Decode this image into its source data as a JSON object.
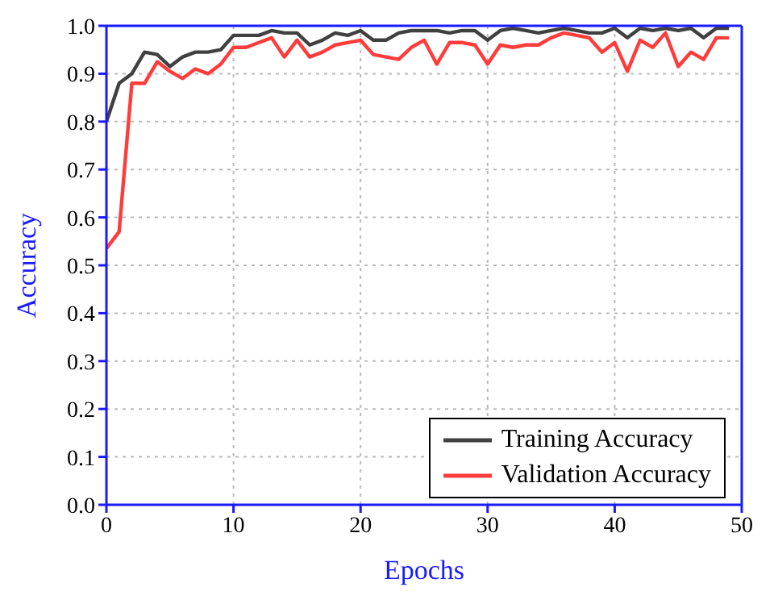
{
  "chart_data": {
    "type": "line",
    "xlabel": "Epochs",
    "ylabel": "Accuracy",
    "x": [
      0,
      1,
      2,
      3,
      4,
      5,
      6,
      7,
      8,
      9,
      10,
      11,
      12,
      13,
      14,
      15,
      16,
      17,
      18,
      19,
      20,
      21,
      22,
      23,
      24,
      25,
      26,
      27,
      28,
      29,
      30,
      31,
      32,
      33,
      34,
      35,
      36,
      37,
      38,
      39,
      40,
      41,
      42,
      43,
      44,
      45,
      46,
      47,
      48,
      49
    ],
    "series": [
      {
        "name": "Training Accuracy",
        "color": "#404040",
        "values": [
          0.8,
          0.88,
          0.9,
          0.945,
          0.94,
          0.915,
          0.935,
          0.945,
          0.945,
          0.95,
          0.98,
          0.98,
          0.98,
          0.99,
          0.985,
          0.985,
          0.96,
          0.97,
          0.985,
          0.98,
          0.99,
          0.97,
          0.97,
          0.985,
          0.99,
          0.99,
          0.99,
          0.985,
          0.99,
          0.99,
          0.97,
          0.99,
          0.995,
          0.99,
          0.985,
          0.99,
          0.995,
          0.99,
          0.985,
          0.985,
          0.995,
          0.975,
          0.995,
          0.99,
          0.995,
          0.99,
          0.995,
          0.975,
          0.995,
          0.995
        ]
      },
      {
        "name": "Validation Accuracy",
        "color": "#ff3b3b",
        "values": [
          0.535,
          0.57,
          0.88,
          0.88,
          0.925,
          0.905,
          0.89,
          0.91,
          0.9,
          0.92,
          0.955,
          0.955,
          0.965,
          0.975,
          0.935,
          0.97,
          0.935,
          0.945,
          0.96,
          0.965,
          0.97,
          0.94,
          0.935,
          0.93,
          0.955,
          0.97,
          0.92,
          0.965,
          0.965,
          0.96,
          0.92,
          0.96,
          0.955,
          0.96,
          0.96,
          0.975,
          0.985,
          0.98,
          0.975,
          0.945,
          0.965,
          0.905,
          0.97,
          0.955,
          0.985,
          0.915,
          0.945,
          0.93,
          0.975,
          0.975
        ]
      }
    ],
    "xlim": [
      0,
      50
    ],
    "xticks": [
      0,
      10,
      20,
      30,
      40,
      50
    ],
    "ylim": [
      0,
      1
    ],
    "yticks": [
      {
        "value": 0,
        "label": "0.0"
      },
      {
        "value": 0.1,
        "label": "0.1"
      },
      {
        "value": 0.2,
        "label": "0.2"
      },
      {
        "value": 0.3,
        "label": "0.3"
      },
      {
        "value": 0.4,
        "label": "0.4"
      },
      {
        "value": 0.5,
        "label": "0.5"
      },
      {
        "value": 0.6,
        "label": "0.6"
      },
      {
        "value": 0.7,
        "label": "0.7"
      },
      {
        "value": 0.8,
        "label": "0.8"
      },
      {
        "value": 0.9,
        "label": "0.9"
      },
      {
        "value": 1,
        "label": "1.0"
      }
    ],
    "grid": true,
    "legend": "bottom right",
    "marker": "none",
    "line_style": "solid"
  }
}
